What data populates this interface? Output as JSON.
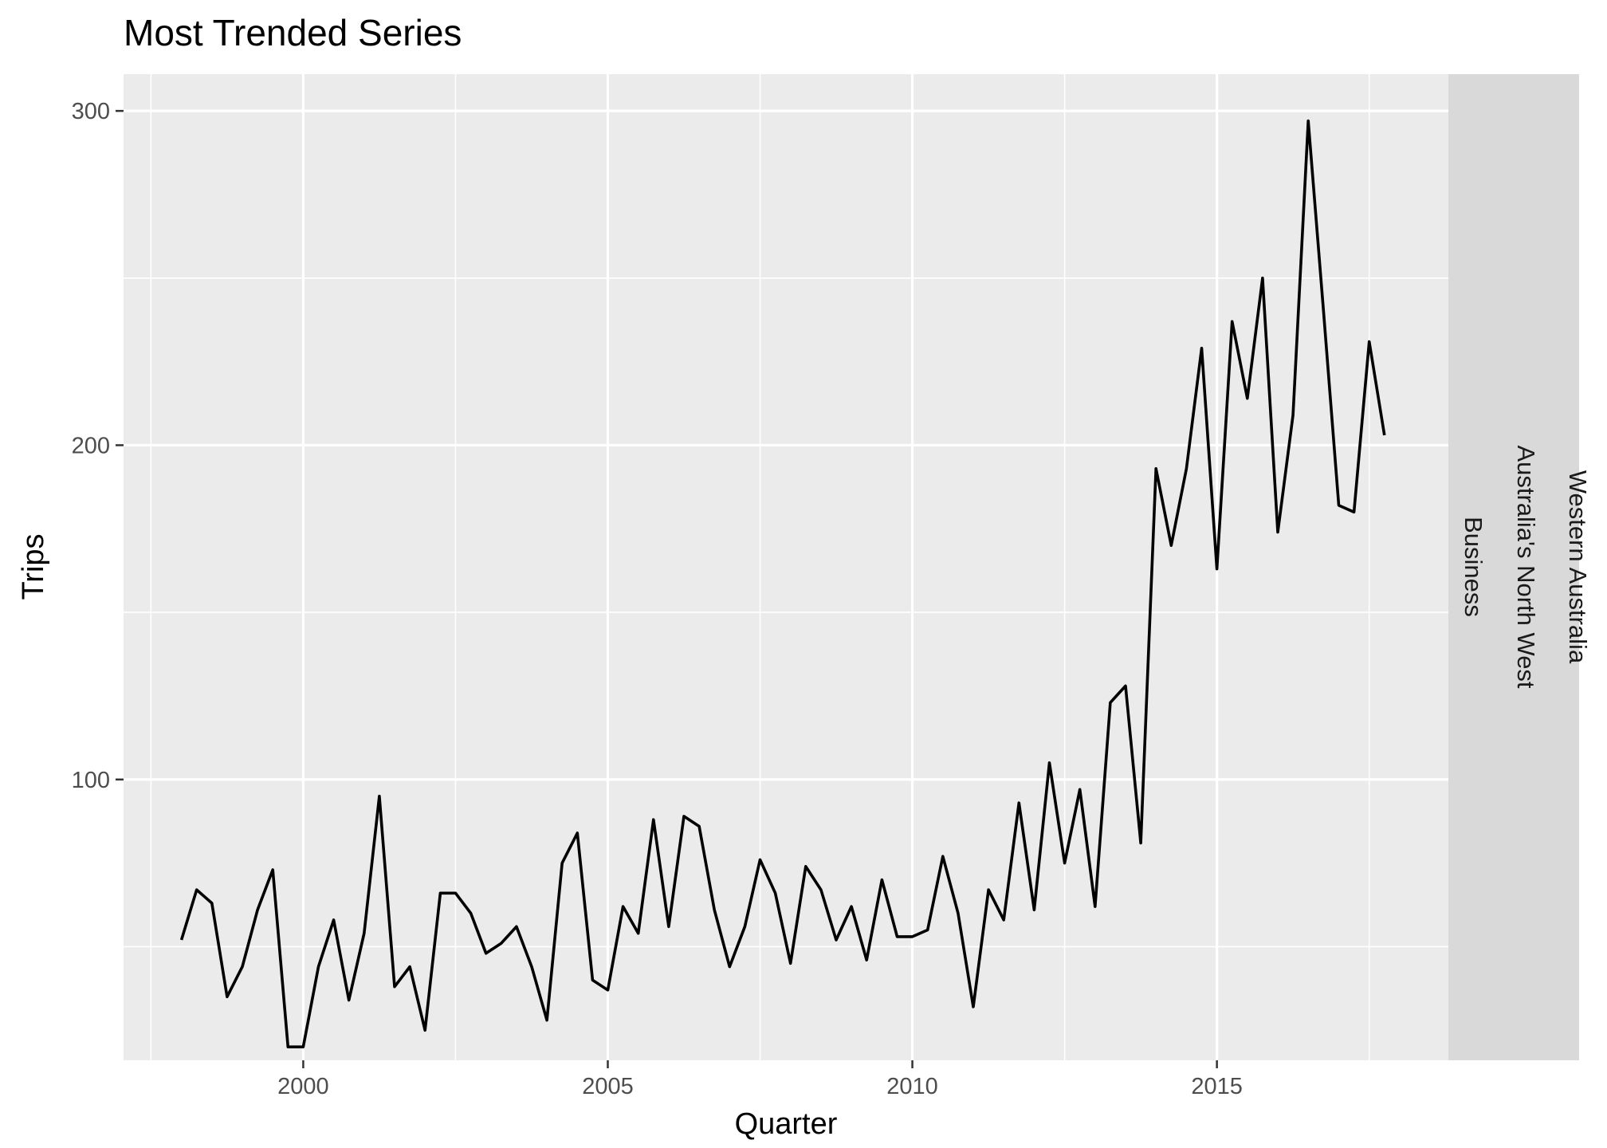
{
  "chart_data": {
    "type": "line",
    "title": "Most Trended Series",
    "xlabel": "Quarter",
    "ylabel": "Trips",
    "x_ticks": [
      "2000",
      "2005",
      "2010",
      "2015"
    ],
    "y_ticks": [
      "100",
      "200",
      "300"
    ],
    "xlim": [
      1997.05,
      2018.8
    ],
    "ylim": [
      16,
      311
    ],
    "grid": true,
    "line_color": "#000000",
    "panel_background": "#ebebeb",
    "strip_background": "#d9d9d9",
    "facet_labels": [
      "Business",
      "Australia's North West",
      "Western Australia"
    ],
    "series": [
      {
        "x": [
          1998.0,
          1998.25,
          1998.5,
          1998.75,
          1999.0,
          1999.25,
          1999.5,
          1999.75,
          2000.0,
          2000.25,
          2000.5,
          2000.75,
          2001.0,
          2001.25,
          2001.5,
          2001.75,
          2002.0,
          2002.25,
          2002.5,
          2002.75,
          2003.0,
          2003.25,
          2003.5,
          2003.75,
          2004.0,
          2004.25,
          2004.5,
          2004.75,
          2005.0,
          2005.25,
          2005.5,
          2005.75,
          2006.0,
          2006.25,
          2006.5,
          2006.75,
          2007.0,
          2007.25,
          2007.5,
          2007.75,
          2008.0,
          2008.25,
          2008.5,
          2008.75,
          2009.0,
          2009.25,
          2009.5,
          2009.75,
          2010.0,
          2010.25,
          2010.5,
          2010.75,
          2011.0,
          2011.25,
          2011.5,
          2011.75,
          2012.0,
          2012.25,
          2012.5,
          2012.75,
          2013.0,
          2013.25,
          2013.5,
          2013.75,
          2014.0,
          2014.25,
          2014.5,
          2014.75,
          2015.0,
          2015.25,
          2015.5,
          2015.75,
          2016.0,
          2016.25,
          2016.5,
          2016.75,
          2017.0,
          2017.25,
          2017.5,
          2017.75
        ],
        "values": [
          52,
          67,
          63,
          35,
          44,
          61,
          73,
          20,
          20,
          44,
          58,
          34,
          54,
          95,
          38,
          44,
          25,
          66,
          66,
          60,
          48,
          51,
          56,
          44,
          28,
          75,
          84,
          40,
          37,
          62,
          54,
          88,
          56,
          89,
          86,
          61,
          44,
          56,
          76,
          66,
          45,
          74,
          67,
          52,
          62,
          46,
          70,
          53,
          53,
          55,
          77,
          60,
          32,
          67,
          58,
          93,
          61,
          105,
          75,
          97,
          62,
          123,
          128,
          81,
          193,
          170,
          193,
          229,
          163,
          237,
          214,
          250,
          174,
          209,
          297,
          240,
          182,
          180,
          231,
          203
        ]
      }
    ]
  }
}
